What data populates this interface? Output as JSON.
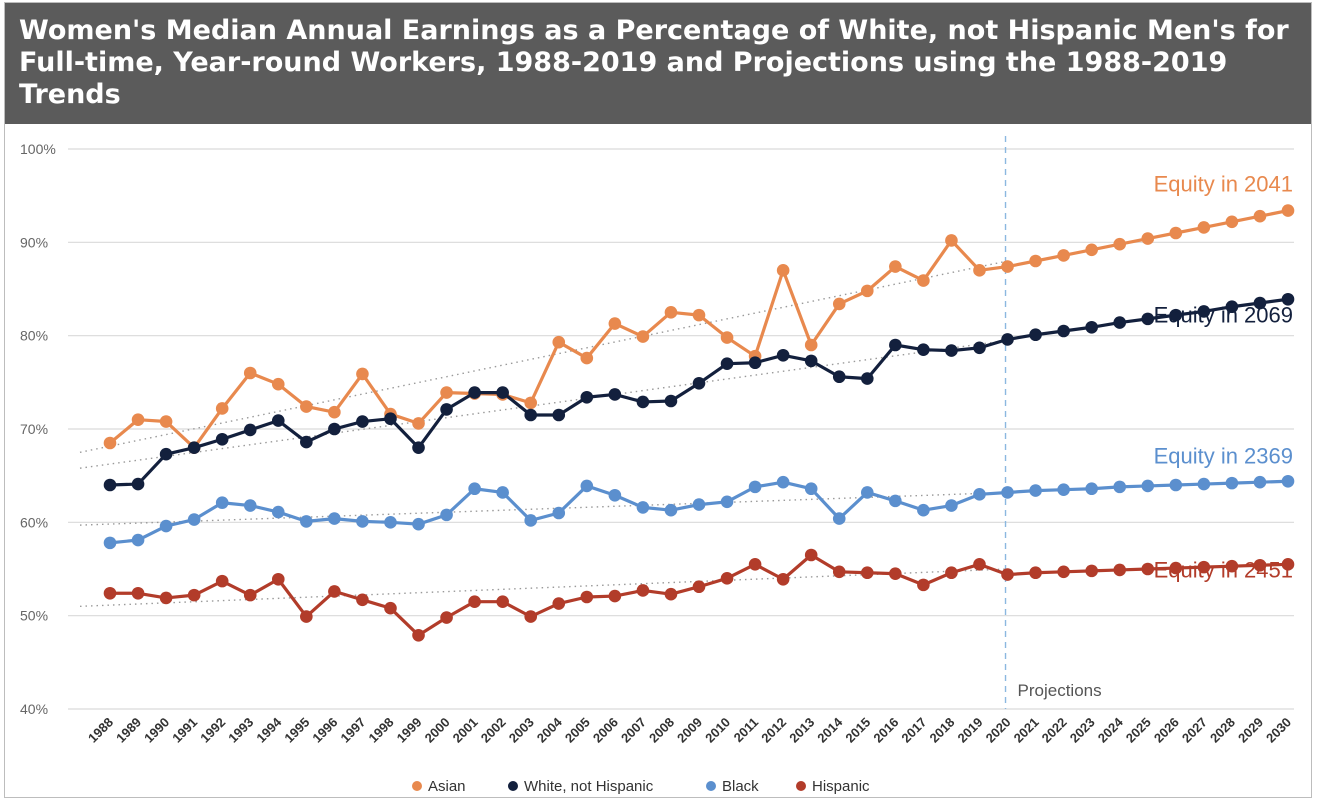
{
  "title": "Women's Median Annual Earnings as a Percentage of White, not Hispanic Men's for Full-time, Year-round Workers, 1988-2019 and Projections using the 1988-2019 Trends",
  "chart_data": {
    "type": "line",
    "title": "Women's Median Annual Earnings as a Percentage of White, not Hispanic Men's for Full-time, Year-round Workers, 1988-2019 and Projections using the 1988-2019 Trends",
    "xlabel": "",
    "ylabel": "",
    "ylim": [
      40,
      100
    ],
    "yticks": [
      40,
      50,
      60,
      70,
      80,
      90,
      100
    ],
    "ytick_labels": [
      "40%",
      "50%",
      "60%",
      "70%",
      "80%",
      "90%",
      "100%"
    ],
    "grid": true,
    "legend_position": "bottom",
    "projection_start": 2020,
    "projection_label": "Projections",
    "x": [
      1988,
      1989,
      1990,
      1991,
      1992,
      1993,
      1994,
      1995,
      1996,
      1997,
      1998,
      1999,
      2000,
      2001,
      2002,
      2003,
      2004,
      2005,
      2006,
      2007,
      2008,
      2009,
      2010,
      2011,
      2012,
      2013,
      2014,
      2015,
      2016,
      2017,
      2018,
      2019,
      2020,
      2021,
      2022,
      2023,
      2024,
      2025,
      2026,
      2027,
      2028,
      2029,
      2030
    ],
    "series": [
      {
        "name": "Asian",
        "color": "#e8894e",
        "end_label": "Equity in 2041",
        "values": [
          68.5,
          71.0,
          70.8,
          68.0,
          72.2,
          76.0,
          74.8,
          72.4,
          71.8,
          75.9,
          71.6,
          70.6,
          73.9,
          73.8,
          73.7,
          72.8,
          79.3,
          77.6,
          81.3,
          79.9,
          82.5,
          82.2,
          79.8,
          77.8,
          87.0,
          79.0,
          83.4,
          84.8,
          87.4,
          85.9,
          90.2,
          87.0,
          87.4,
          88.0,
          88.6,
          89.2,
          89.8,
          90.4,
          91.0,
          91.6,
          92.2,
          92.8,
          93.4
        ],
        "trend": [
          67.5,
          88.0
        ]
      },
      {
        "name": "White, not Hispanic",
        "color": "#13203d",
        "end_label": "Equity in 2069",
        "values": [
          64.0,
          64.1,
          67.3,
          68.0,
          68.9,
          69.9,
          70.9,
          68.6,
          70.0,
          70.8,
          71.1,
          68.0,
          72.1,
          73.9,
          73.9,
          71.5,
          71.5,
          73.4,
          73.7,
          72.9,
          73.0,
          74.9,
          77.0,
          77.1,
          77.9,
          77.3,
          75.6,
          75.4,
          79.0,
          78.5,
          78.4,
          78.7,
          79.6,
          80.1,
          80.5,
          80.9,
          81.4,
          81.8,
          82.2,
          82.6,
          83.1,
          83.5,
          83.9
        ],
        "trend": [
          65.8,
          79.5
        ]
      },
      {
        "name": "Black",
        "color": "#5b8fce",
        "end_label": "Equity in 2369",
        "values": [
          57.8,
          58.1,
          59.6,
          60.3,
          62.1,
          61.8,
          61.1,
          60.1,
          60.4,
          60.1,
          60.0,
          59.8,
          60.8,
          63.6,
          63.2,
          60.2,
          61.0,
          63.9,
          62.9,
          61.6,
          61.3,
          61.9,
          62.2,
          63.8,
          64.3,
          63.6,
          60.4,
          63.2,
          62.3,
          61.3,
          61.8,
          63.0,
          63.2,
          63.4,
          63.5,
          63.6,
          63.8,
          63.9,
          64.0,
          64.1,
          64.2,
          64.3,
          64.4
        ],
        "trend": [
          59.7,
          63.2
        ]
      },
      {
        "name": "Hispanic",
        "color": "#b23c2a",
        "end_label": "Equity in 2451",
        "values": [
          52.4,
          52.4,
          51.9,
          52.2,
          53.7,
          52.2,
          53.9,
          49.9,
          52.6,
          51.7,
          50.8,
          47.9,
          49.8,
          51.5,
          51.5,
          49.9,
          51.3,
          52.0,
          52.1,
          52.7,
          52.3,
          53.1,
          54.0,
          55.5,
          53.9,
          56.5,
          54.7,
          54.6,
          54.5,
          53.3,
          54.6,
          55.5,
          54.4,
          54.6,
          54.7,
          54.8,
          54.9,
          55.0,
          55.1,
          55.2,
          55.3,
          55.4,
          55.5
        ],
        "trend": [
          51.0,
          55.0
        ]
      }
    ]
  }
}
